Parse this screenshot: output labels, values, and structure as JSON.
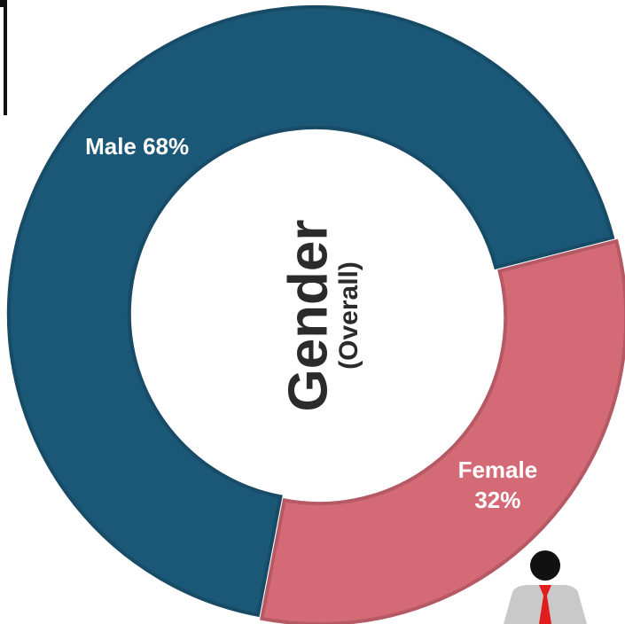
{
  "chart_data": {
    "type": "pie",
    "donut": true,
    "title": "Gender",
    "subtitle": "(Overall)",
    "categories": [
      "Male",
      "Female"
    ],
    "values": [
      68,
      32
    ],
    "value_labels": [
      "Male 68%",
      "Female 32%"
    ],
    "colors": [
      "#1b5878",
      "#d56a77"
    ]
  }
}
